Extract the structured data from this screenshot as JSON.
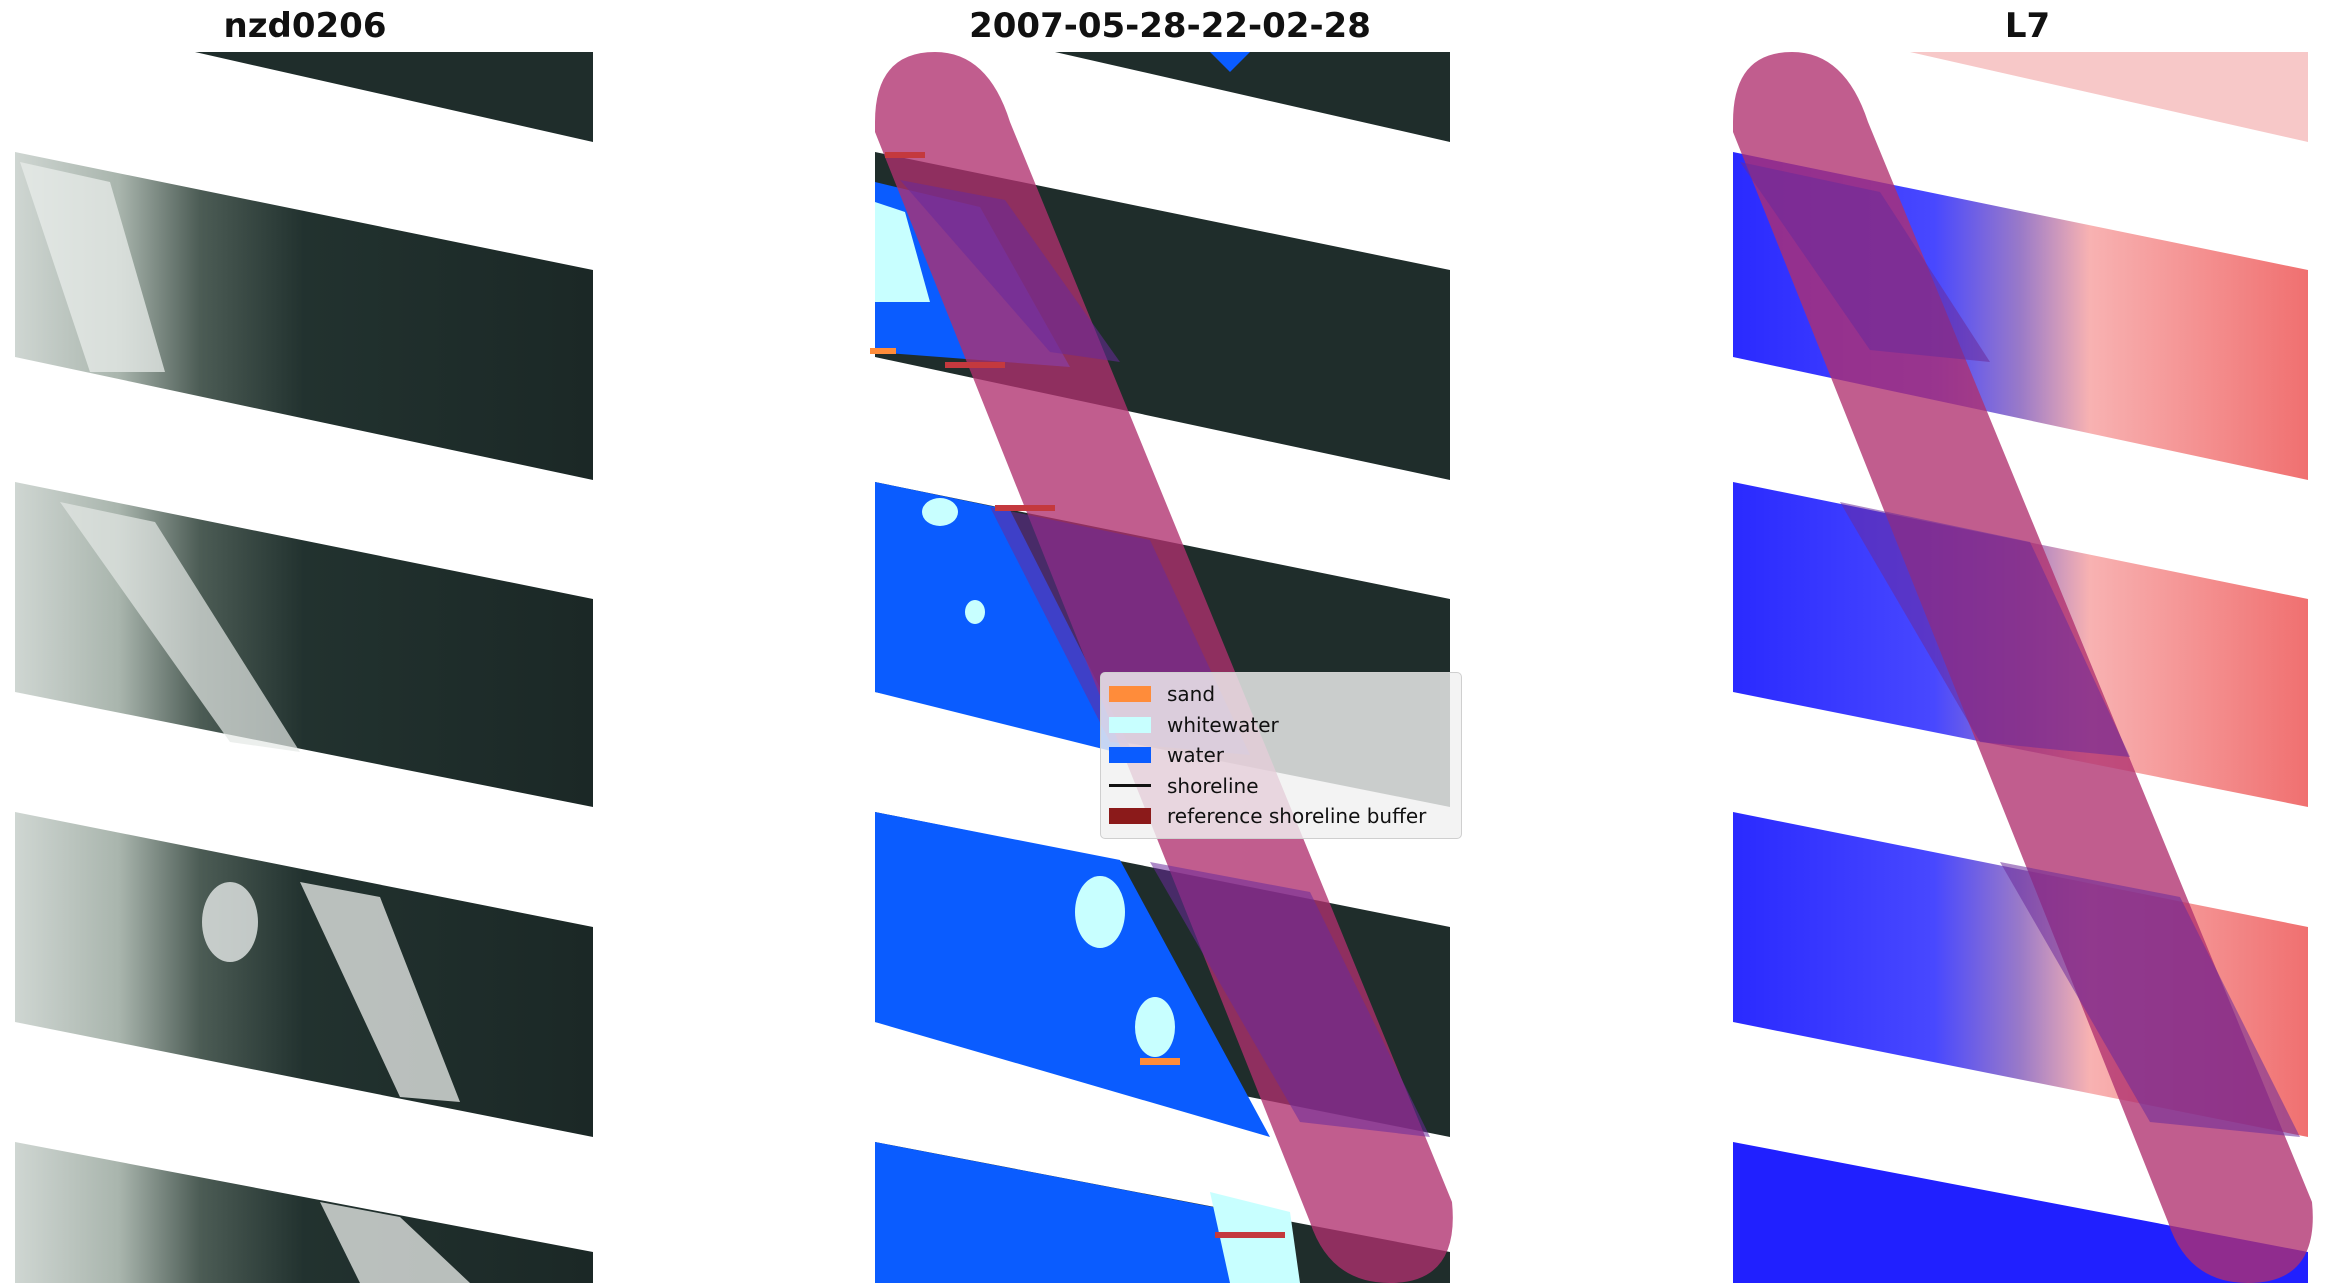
{
  "panels": {
    "left_title": "nzd0206",
    "middle_title": "2007-05-28-22-02-28",
    "right_title": "L7"
  },
  "legend": {
    "items": [
      {
        "label": "sand",
        "color": "#ff8c3a",
        "kind": "patch"
      },
      {
        "label": "whitewater",
        "color": "#c8ffff",
        "kind": "patch"
      },
      {
        "label": "water",
        "color": "#0a5cff",
        "kind": "patch"
      },
      {
        "label": "shoreline",
        "color": "#000000",
        "kind": "line"
      },
      {
        "label": "reference shoreline buffer",
        "color": "#8b1a1a",
        "kind": "patch"
      }
    ]
  },
  "colors": {
    "buffer_overlay": "#b0306e",
    "land_dark": "#1e2b2a",
    "water_blue": "#0a5cff",
    "whitewater": "#c8ffff",
    "index_red": "#f04a4a",
    "index_blue": "#1a1aff"
  }
}
